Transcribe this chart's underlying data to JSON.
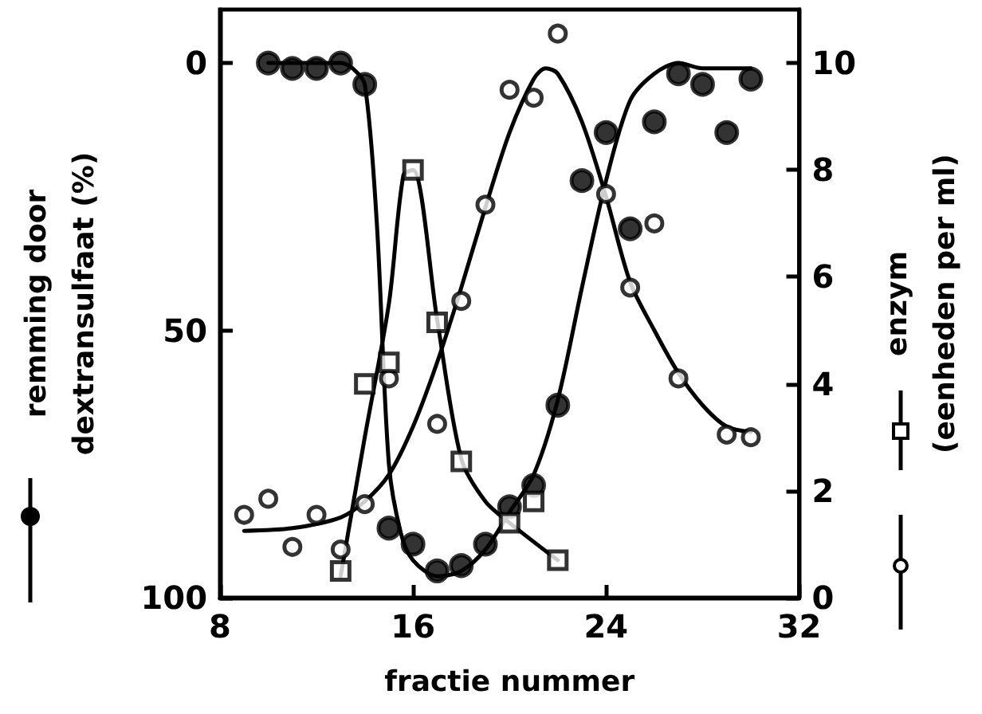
{
  "chart_data": {
    "type": "scatter",
    "xlabel": "fractie nummer",
    "ylabel": "remming door\ndextransulfaat (%)",
    "y2label": "enzym\n(eenheden per ml)",
    "xlim": [
      8,
      32
    ],
    "xticks": [
      8,
      16,
      24,
      32
    ],
    "ylim": [
      100,
      -10
    ],
    "yticks": [
      0,
      50,
      100
    ],
    "y2lim": [
      0,
      11
    ],
    "y2ticks": [
      0,
      2,
      4,
      6,
      8,
      10
    ],
    "grid": false,
    "series": [
      {
        "axis": "y",
        "marker": "circle",
        "color": "#000000",
        "x": [
          10,
          11,
          12,
          13,
          14,
          15,
          16,
          17,
          18,
          19,
          20,
          21,
          22,
          23,
          24,
          25,
          26,
          27,
          28,
          29,
          30
        ],
        "values": [
          0,
          1,
          1,
          0,
          4,
          87,
          90,
          95,
          94,
          90,
          83,
          79,
          64,
          22,
          13,
          31,
          11,
          2,
          4,
          13,
          3
        ]
      },
      {
        "type": "line",
        "axis": "y",
        "marker": "none",
        "line_style": "solid",
        "color": "#000000",
        "x": [
          10,
          12,
          13,
          13.5,
          14,
          14.5,
          15,
          15.5,
          16,
          17,
          18,
          19,
          20,
          21,
          22,
          23,
          24,
          25,
          26,
          27,
          28,
          30
        ],
        "values": [
          0,
          0,
          0,
          1,
          4,
          30,
          75,
          88,
          93,
          96,
          95,
          91,
          84,
          77,
          63,
          42,
          22,
          7,
          2,
          0,
          1,
          1
        ]
      },
      {
        "axis": "y2",
        "marker": "circle",
        "color": "#ffffff",
        "x": [
          9,
          10,
          11,
          12,
          13,
          14,
          15,
          17,
          18,
          19,
          20,
          21,
          22,
          24,
          25,
          26,
          27,
          29,
          30
        ],
        "values": [
          1.55,
          1.85,
          0.95,
          1.55,
          0.9,
          1.75,
          4.1,
          3.25,
          5.55,
          7.35,
          9.5,
          9.35,
          10.55,
          7.55,
          5.8,
          7.0,
          4.1,
          3.05,
          3.0
        ]
      },
      {
        "type": "line",
        "axis": "y2",
        "marker": "none",
        "line_style": "solid",
        "color": "#000000",
        "x": [
          9,
          11,
          13,
          14,
          15,
          16,
          17,
          18,
          19,
          20,
          21,
          21.5,
          22,
          23,
          24,
          25,
          26,
          27,
          28,
          29,
          30
        ],
        "values": [
          1.25,
          1.3,
          1.5,
          1.8,
          2.3,
          3.2,
          4.4,
          5.8,
          7.3,
          8.7,
          9.7,
          9.9,
          9.8,
          8.9,
          7.5,
          5.9,
          5.0,
          4.2,
          3.6,
          3.2,
          3.1
        ]
      },
      {
        "axis": "y2",
        "marker": "square",
        "color": "#ffffff",
        "x": [
          13,
          14,
          15,
          16,
          17,
          18,
          20,
          21,
          22
        ],
        "values": [
          0.5,
          4.0,
          4.4,
          8.0,
          5.15,
          2.55,
          1.4,
          1.8,
          0.7
        ]
      },
      {
        "type": "line",
        "axis": "y2",
        "marker": "none",
        "line_style": "solid",
        "color": "#000000",
        "x": [
          13,
          14,
          15,
          15.6,
          16,
          17,
          18,
          19,
          20,
          22
        ],
        "values": [
          0.4,
          3.0,
          5.5,
          7.9,
          8.0,
          5.2,
          2.6,
          1.8,
          1.4,
          0.7
        ]
      }
    ]
  }
}
